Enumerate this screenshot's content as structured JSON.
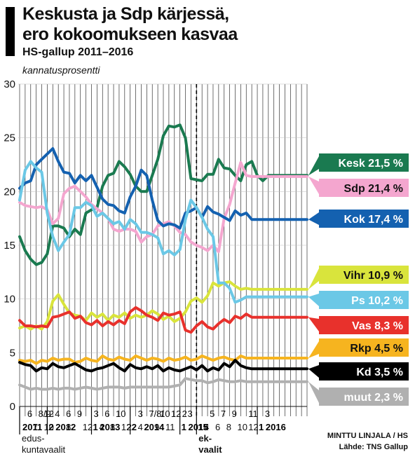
{
  "header": {
    "title_line1": "Keskusta ja Sdp kärjessä,",
    "title_line2": "ero kokoomukseen kasvaa",
    "subtitle": "HS-gallup 2011–2016",
    "unit": "kannatusprosentti"
  },
  "footer": {
    "credit": "MINTTU LINJALA / HS",
    "source": "Lähde: TNS Gallup"
  },
  "chart_data": {
    "type": "line",
    "ylim": [
      0,
      30
    ],
    "yticks": [
      0,
      5,
      10,
      15,
      20,
      25,
      30
    ],
    "grid": "vertical monthly lines",
    "x_count": 53,
    "month_ticks": [
      {
        "i": 1,
        "label": "6"
      },
      {
        "i": 3,
        "label": "8/9"
      },
      {
        "i": 4,
        "label": "12"
      },
      {
        "i": 6,
        "label": "4"
      },
      {
        "i": 8,
        "label": "6"
      },
      {
        "i": 10,
        "label": "9"
      },
      {
        "i": 13,
        "label": "3"
      },
      {
        "i": 15,
        "label": "6"
      },
      {
        "i": 17,
        "label": "10"
      },
      {
        "i": 21,
        "label": "3"
      },
      {
        "i": 23,
        "label": "7/8/"
      },
      {
        "i": 25,
        "label": "10"
      },
      {
        "i": 27,
        "label": "12"
      },
      {
        "i": 29,
        "label": "2"
      },
      {
        "i": 30,
        "label": "3"
      },
      {
        "i": 34,
        "label": "5"
      },
      {
        "i": 36,
        "label": "7"
      },
      {
        "i": 38,
        "label": "9"
      },
      {
        "i": 41,
        "label": "11"
      },
      {
        "i": 44,
        "label": "3"
      }
    ],
    "month_ticks_row2": [
      {
        "i": 2,
        "label": "7"
      },
      {
        "i": 4,
        "label": "10"
      },
      {
        "i": 8,
        "label": "8"
      },
      {
        "i": 11,
        "label": "12"
      },
      {
        "i": 14,
        "label": "4"
      },
      {
        "i": 16,
        "label": "8"
      },
      {
        "i": 18,
        "label": "12"
      },
      {
        "i": 19,
        "label": "2"
      },
      {
        "i": 21,
        "label": "4"
      },
      {
        "i": 24,
        "label": "9"
      },
      {
        "i": 26,
        "label": "11"
      },
      {
        "i": 33,
        "label": "4"
      },
      {
        "i": 35,
        "label": "6"
      },
      {
        "i": 37,
        "label": "8"
      },
      {
        "i": 39,
        "label": "10"
      },
      {
        "i": 41,
        "label": "12"
      }
    ],
    "year_ticks": [
      {
        "i": 0,
        "label": "2011"
      },
      {
        "i": 5,
        "label": "2"
      },
      {
        "i": 6,
        "label": "2012"
      },
      {
        "i": 13,
        "label": "1"
      },
      {
        "i": 14,
        "label": "2013"
      },
      {
        "i": 20,
        "label": "2"
      },
      {
        "i": 22,
        "label": "2014"
      },
      {
        "i": 29,
        "label": "1"
      },
      {
        "i": 30,
        "label": "2015"
      },
      {
        "i": 32,
        "label": "15"
      },
      {
        "i": 43,
        "label": "1"
      },
      {
        "i": 44,
        "label": "2016"
      }
    ],
    "annotations": [
      {
        "i": 0,
        "label": "edus-",
        "row": 1
      },
      {
        "i": 0,
        "label": "kuntavaalit",
        "row": 2
      },
      {
        "i": 32,
        "label": "ek-",
        "row": 1
      },
      {
        "i": 32,
        "label": "vaalit",
        "row": 2
      }
    ],
    "election_marker_index": 32,
    "series": [
      {
        "name": "Kesk",
        "label": "Kesk 21,5 %",
        "color": "#1a7a50",
        "text_color": "#ffffff",
        "values": [
          15.8,
          14.5,
          13.7,
          13.2,
          13.4,
          14.2,
          16.8,
          16.8,
          16.6,
          15.8,
          16.5,
          16.0,
          18.0,
          18.3,
          18.5,
          20.5,
          21.5,
          21.7,
          22.8,
          22.3,
          21.6,
          20.5,
          20.0,
          20.0,
          21.5,
          23.0,
          25.2,
          26.1,
          26.0,
          26.2,
          25.0,
          21.2,
          21.1,
          21.0,
          21.6,
          21.6,
          23.0,
          22.2,
          22.1,
          21.5,
          21.0,
          22.5,
          22.8,
          21.5,
          21.0,
          21.5,
          21.5,
          21.5,
          21.5,
          21.5,
          21.5,
          21.5,
          21.5
        ]
      },
      {
        "name": "Sdp",
        "label": "Sdp 21,4 %",
        "color": "#f4a6cf",
        "text_color": "#111111",
        "values": [
          19.0,
          18.7,
          18.6,
          18.5,
          18.6,
          18.3,
          17.0,
          17.5,
          19.8,
          20.3,
          20.5,
          20.0,
          19.5,
          18.8,
          18.4,
          18.0,
          17.5,
          16.5,
          16.3,
          16.5,
          16.5,
          16.3,
          15.3,
          15.8,
          16.0,
          16.8,
          17.0,
          17.2,
          16.8,
          16.2,
          16.0,
          15.3,
          15.0,
          14.8,
          14.5,
          15.0,
          14.4,
          17.5,
          18.8,
          20.8,
          22.7,
          21.5,
          21.4,
          21.4,
          21.4,
          21.4,
          21.4,
          21.4,
          21.4,
          21.4,
          21.4,
          21.4,
          21.4
        ]
      },
      {
        "name": "Kok",
        "label": "Kok 17,4 %",
        "color": "#1461b0",
        "text_color": "#ffffff",
        "values": [
          20.3,
          20.8,
          21.0,
          22.5,
          23.0,
          23.5,
          24.0,
          22.8,
          21.8,
          21.7,
          20.8,
          21.5,
          21.0,
          21.5,
          20.4,
          19.3,
          18.8,
          18.7,
          18.2,
          18.0,
          19.5,
          20.5,
          22.0,
          21.5,
          19.2,
          17.3,
          16.8,
          17.0,
          16.9,
          16.6,
          18.0,
          18.2,
          18.5,
          17.6,
          18.6,
          18.1,
          17.9,
          17.6,
          17.3,
          18.2,
          17.8,
          18.0,
          17.4,
          17.4,
          17.4,
          17.4,
          17.4,
          17.4,
          17.4,
          17.4,
          17.4,
          17.4,
          17.4
        ]
      },
      {
        "name": "Vihr",
        "label": "Vihr 10,9 %",
        "color": "#d9e43c",
        "text_color": "#111111",
        "values": [
          7.3,
          7.5,
          7.2,
          7.5,
          7.2,
          7.9,
          9.8,
          10.4,
          9.5,
          8.7,
          8.5,
          8.4,
          8.0,
          8.7,
          8.3,
          8.6,
          8.0,
          8.5,
          8.3,
          8.7,
          8.2,
          8.5,
          8.3,
          8.5,
          8.9,
          8.6,
          8.1,
          8.4,
          7.9,
          8.2,
          8.8,
          9.8,
          10.1,
          9.7,
          10.3,
          11.5,
          11.2,
          11.5,
          11.6,
          11.2,
          10.9,
          11.0,
          10.9,
          10.9,
          10.9,
          10.9,
          10.9,
          10.9,
          10.9,
          10.9,
          10.9,
          10.9,
          10.9
        ]
      },
      {
        "name": "Ps",
        "label": "Ps 10,2 %",
        "color": "#6bc8e6",
        "text_color": "#ffffff",
        "values": [
          19.2,
          22.0,
          22.8,
          22.2,
          21.8,
          18.0,
          15.8,
          14.5,
          15.3,
          16.0,
          18.5,
          18.5,
          19.0,
          18.7,
          17.7,
          18.0,
          17.5,
          17.0,
          17.2,
          16.5,
          17.4,
          17.0,
          16.2,
          16.2,
          16.0,
          15.7,
          14.2,
          14.5,
          14.1,
          14.6,
          17.4,
          19.2,
          18.5,
          17.6,
          16.5,
          15.8,
          11.5,
          11.5,
          11.0,
          9.7,
          9.9,
          10.2,
          10.2,
          10.2,
          10.2,
          10.2,
          10.2,
          10.2,
          10.2,
          10.2,
          10.2,
          10.2,
          10.2
        ]
      },
      {
        "name": "Vas",
        "label": "Vas 8,3 %",
        "color": "#e8312c",
        "text_color": "#ffffff",
        "values": [
          8.0,
          7.5,
          7.5,
          7.4,
          7.5,
          7.4,
          8.3,
          8.4,
          8.6,
          8.8,
          8.2,
          8.4,
          7.8,
          7.6,
          8.0,
          7.5,
          7.9,
          7.6,
          8.0,
          7.7,
          8.8,
          9.2,
          8.9,
          8.5,
          8.3,
          8.0,
          8.7,
          8.5,
          8.6,
          8.8,
          7.1,
          6.9,
          7.5,
          7.9,
          7.4,
          7.2,
          7.7,
          8.1,
          7.8,
          8.4,
          8.2,
          8.6,
          8.3,
          8.3,
          8.3,
          8.3,
          8.3,
          8.3,
          8.3,
          8.3,
          8.3,
          8.3,
          8.3
        ]
      },
      {
        "name": "Rkp",
        "label": "Rkp 4,5 %",
        "color": "#f6b41f",
        "text_color": "#111111",
        "values": [
          4.3,
          4.2,
          4.3,
          4.0,
          4.3,
          4.2,
          4.5,
          4.3,
          4.4,
          4.4,
          4.1,
          4.2,
          4.5,
          4.3,
          4.2,
          4.7,
          4.4,
          4.3,
          4.6,
          4.4,
          4.3,
          4.7,
          4.5,
          4.3,
          4.5,
          4.4,
          4.2,
          4.5,
          4.3,
          4.4,
          4.6,
          4.3,
          4.4,
          4.7,
          4.5,
          4.3,
          4.5,
          4.6,
          4.4,
          4.3,
          4.7,
          4.5,
          4.5,
          4.5,
          4.5,
          4.5,
          4.5,
          4.5,
          4.5,
          4.5,
          4.5,
          4.5,
          4.5
        ]
      },
      {
        "name": "Kd",
        "label": "Kd 3,5 %",
        "color": "#000000",
        "text_color": "#ffffff",
        "values": [
          4.1,
          3.9,
          3.8,
          3.3,
          3.6,
          3.5,
          4.0,
          3.7,
          3.6,
          3.8,
          4.0,
          3.7,
          3.4,
          3.3,
          3.5,
          3.6,
          3.8,
          4.0,
          3.6,
          3.3,
          3.9,
          3.6,
          3.5,
          3.7,
          3.5,
          3.8,
          3.3,
          3.6,
          3.4,
          3.3,
          3.5,
          3.7,
          3.4,
          3.8,
          3.3,
          3.6,
          3.4,
          4.0,
          3.7,
          4.3,
          3.8,
          3.6,
          3.5,
          3.5,
          3.5,
          3.5,
          3.5,
          3.5,
          3.5,
          3.5,
          3.5,
          3.5,
          3.5
        ]
      },
      {
        "name": "muut",
        "label": "muut 2,3 %",
        "color": "#b0b0b0",
        "text_color": "#ffffff",
        "values": [
          2.0,
          1.8,
          1.6,
          1.7,
          1.6,
          1.6,
          1.7,
          1.6,
          1.7,
          1.7,
          1.6,
          1.7,
          1.8,
          1.7,
          1.6,
          1.7,
          1.8,
          1.8,
          1.8,
          1.7,
          1.8,
          1.8,
          1.8,
          1.8,
          1.8,
          1.8,
          1.8,
          1.8,
          1.9,
          2.0,
          2.6,
          2.5,
          2.4,
          2.4,
          2.2,
          2.3,
          2.5,
          2.4,
          2.3,
          2.3,
          2.4,
          2.3,
          2.3,
          2.3,
          2.3,
          2.3,
          2.3,
          2.3,
          2.3,
          2.3,
          2.3,
          2.3,
          2.3
        ]
      }
    ]
  }
}
